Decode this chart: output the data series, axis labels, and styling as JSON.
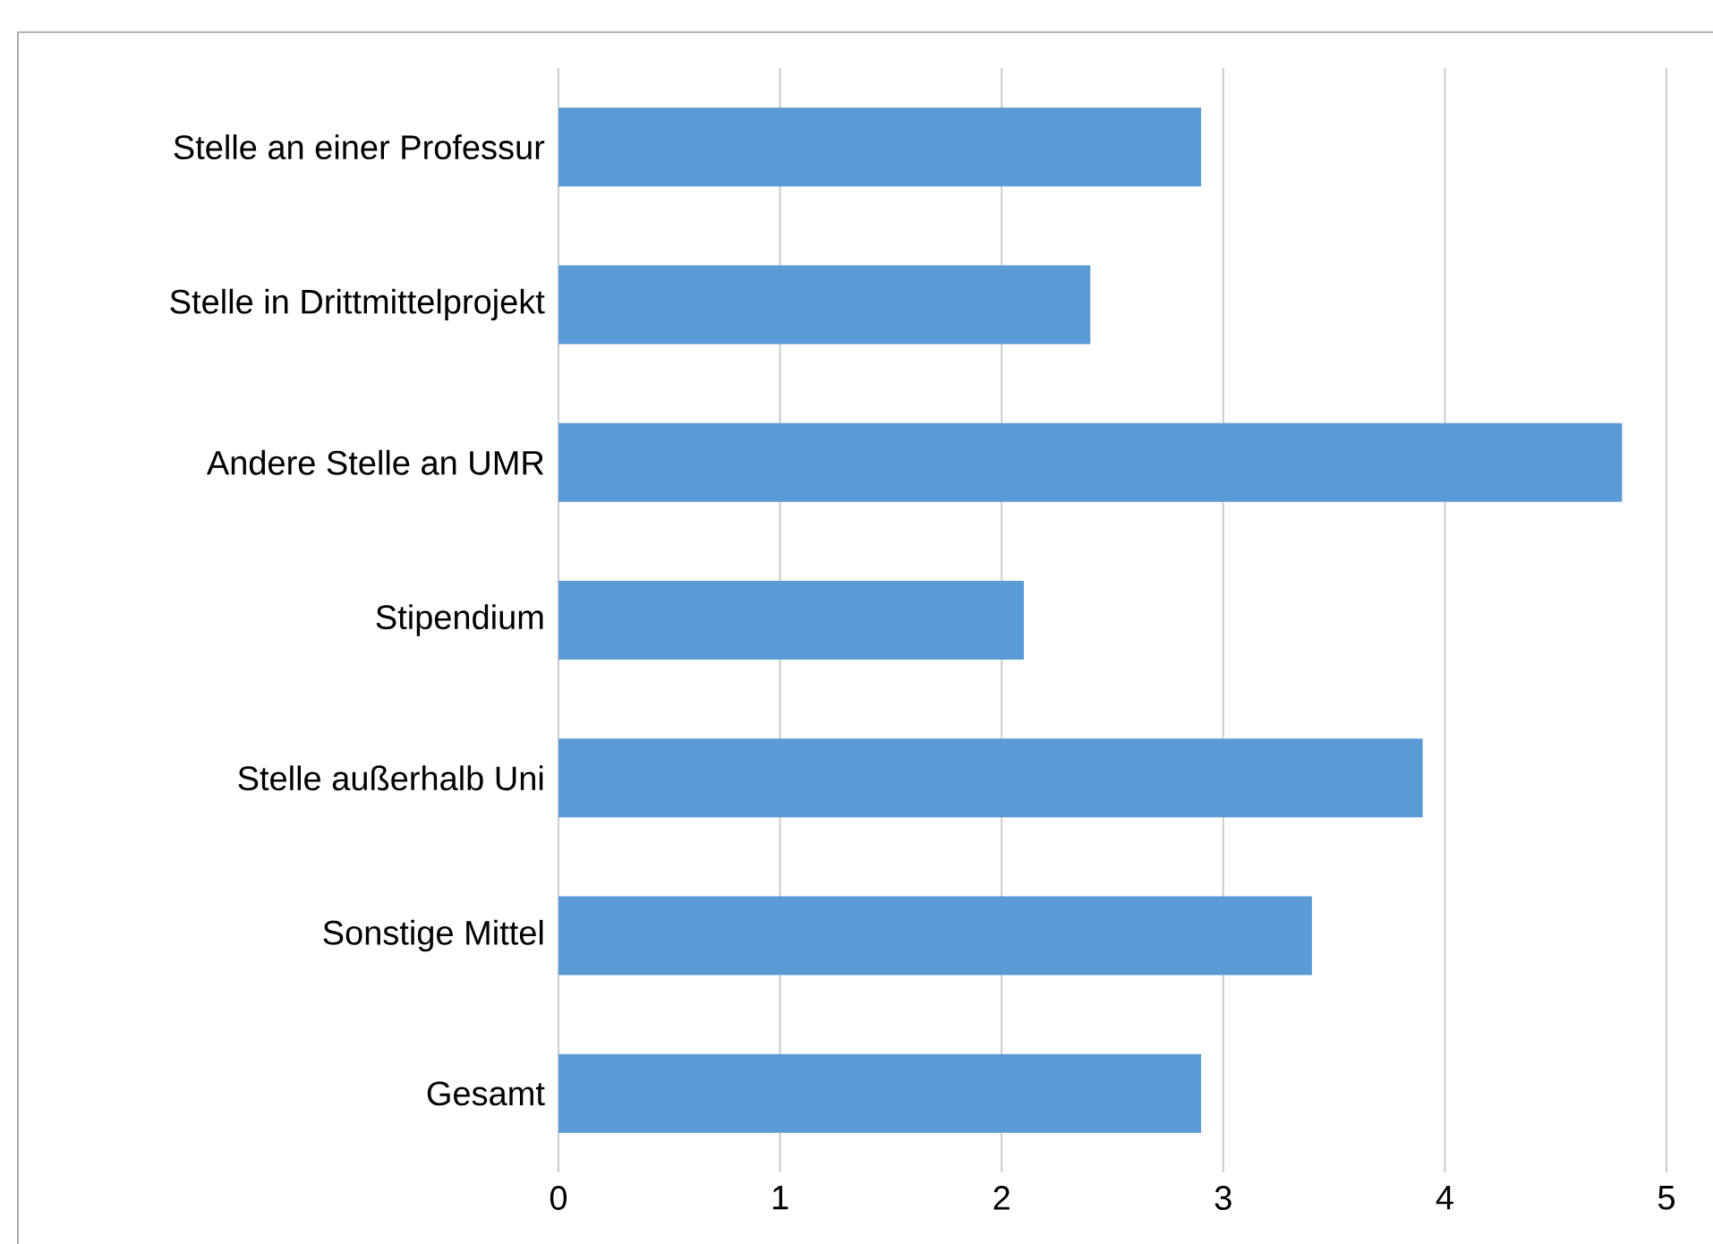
{
  "chart_data": {
    "type": "bar",
    "orientation": "horizontal",
    "categories": [
      "Stelle an einer Professur",
      "Stelle in Drittmittelprojekt",
      "Andere Stelle an UMR",
      "Stipendium",
      "Stelle außerhalb Uni",
      "Sonstige Mittel",
      "Gesamt"
    ],
    "values": [
      2.9,
      2.4,
      4.8,
      2.1,
      3.9,
      3.4,
      2.9
    ],
    "color": "#5b9bd5",
    "xlim": [
      0,
      5
    ],
    "xticks": [
      0,
      1,
      2,
      3,
      4,
      5
    ],
    "grid": "x"
  }
}
